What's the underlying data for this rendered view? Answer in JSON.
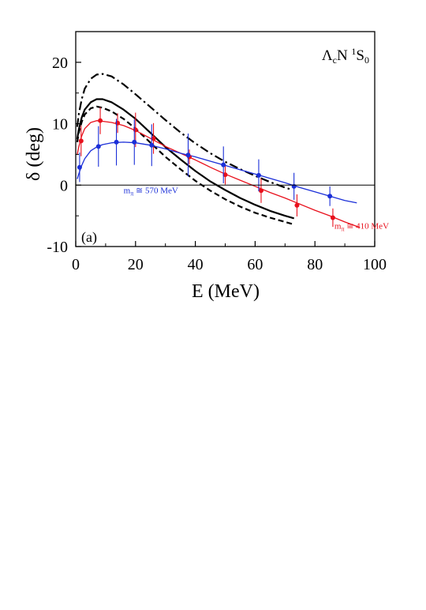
{
  "chart_data": {
    "type": "line",
    "title": "",
    "panel_label": "(a)",
    "channel_label": {
      "base": "Λ",
      "base_sub": "c",
      "mid": "N ",
      "sup": "1",
      "end": "S",
      "end_sub": "0"
    },
    "xlabel": "E (MeV)",
    "ylabel": "δ (deg)",
    "xlim": [
      0,
      100
    ],
    "ylim": [
      -10,
      25
    ],
    "xticks": [
      0,
      20,
      40,
      60,
      80,
      100
    ],
    "yticks": [
      -10,
      0,
      10,
      20
    ],
    "zero_line": true,
    "grid": false,
    "series": [
      {
        "style": "dash-dot",
        "color": "#000000",
        "x": [
          0.5,
          1,
          2,
          3,
          5,
          7,
          9,
          12,
          16,
          20,
          25,
          30,
          35,
          40,
          45,
          50,
          55,
          60,
          65,
          70,
          72
        ],
        "y": [
          9.5,
          11.5,
          14.0,
          15.7,
          17.3,
          18.0,
          18.1,
          17.7,
          16.4,
          14.8,
          12.7,
          10.6,
          8.6,
          6.8,
          5.2,
          3.8,
          2.6,
          1.5,
          0.5,
          -0.4,
          -0.7
        ]
      },
      {
        "style": "solid",
        "color": "#000000",
        "x": [
          0.5,
          1,
          2,
          3,
          5,
          7,
          9,
          12,
          16,
          20,
          25,
          30,
          35,
          40,
          45,
          50,
          55,
          60,
          65,
          70,
          73
        ],
        "y": [
          7.5,
          9.0,
          11.0,
          12.3,
          13.5,
          14.0,
          14.0,
          13.5,
          12.3,
          10.8,
          8.5,
          6.2,
          4.2,
          2.3,
          0.6,
          -0.8,
          -2.1,
          -3.2,
          -4.2,
          -5.0,
          -5.4
        ]
      },
      {
        "style": "dashed",
        "color": "#000000",
        "x": [
          0.5,
          1,
          2,
          3,
          5,
          7,
          9,
          12,
          16,
          20,
          25,
          30,
          35,
          40,
          45,
          50,
          55,
          60,
          65,
          70,
          73
        ],
        "y": [
          7.0,
          8.5,
          10.3,
          11.5,
          12.5,
          12.8,
          12.6,
          12.0,
          10.8,
          9.2,
          6.9,
          4.6,
          2.6,
          0.7,
          -0.9,
          -2.3,
          -3.5,
          -4.5,
          -5.3,
          -6.0,
          -6.4
        ]
      },
      {
        "style": "solid",
        "color": "#e8101c",
        "name": "m_π ≅ 410 MeV",
        "x": [
          0.5,
          1,
          2,
          3,
          5,
          7,
          9,
          12,
          16,
          20,
          25,
          30,
          35,
          40,
          45,
          50,
          55,
          60,
          65,
          70,
          75,
          80,
          85,
          90,
          95
        ],
        "y": [
          5.0,
          6.2,
          8.0,
          9.2,
          10.2,
          10.5,
          10.4,
          10.2,
          9.7,
          8.9,
          7.6,
          6.3,
          5.2,
          4.1,
          2.9,
          1.8,
          0.8,
          -0.2,
          -1.2,
          -2.1,
          -3.1,
          -4.1,
          -5.0,
          -6.0,
          -6.9
        ]
      },
      {
        "style": "solid",
        "color": "#1b2fd8",
        "name": "m_π ≅ 570 MeV",
        "x": [
          0.5,
          1,
          2,
          3,
          5,
          7,
          9,
          12,
          16,
          20,
          25,
          30,
          35,
          40,
          45,
          50,
          55,
          60,
          65,
          70,
          75,
          80,
          85,
          90,
          94
        ],
        "y": [
          1.0,
          1.8,
          3.2,
          4.3,
          5.6,
          6.2,
          6.6,
          6.9,
          7.0,
          6.9,
          6.5,
          5.9,
          5.2,
          4.6,
          3.9,
          3.2,
          2.5,
          1.8,
          1.1,
          0.4,
          -0.4,
          -1.1,
          -1.8,
          -2.5,
          -2.9
        ]
      }
    ],
    "red_points": [
      {
        "x": 1.8,
        "y": 7.2,
        "yerr": [
          2.5,
          2.5
        ]
      },
      {
        "x": 8.2,
        "y": 10.5,
        "yerr": [
          2.2,
          2.2
        ]
      },
      {
        "x": 14.0,
        "y": 10.1,
        "yerr": [
          1.6,
          1.6
        ]
      },
      {
        "x": 20.0,
        "y": 9.0,
        "yerr": [
          2.8,
          2.8
        ]
      },
      {
        "x": 26.0,
        "y": 7.6,
        "yerr": [
          2.5,
          2.5
        ]
      },
      {
        "x": 38.0,
        "y": 4.6,
        "yerr": [
          1.2,
          1.2
        ]
      },
      {
        "x": 50.0,
        "y": 1.7,
        "yerr": [
          1.6,
          1.6
        ]
      },
      {
        "x": 62.0,
        "y": -0.9,
        "yerr": [
          2.0,
          2.0
        ]
      },
      {
        "x": 74.0,
        "y": -3.3,
        "yerr": [
          1.8,
          1.8
        ]
      },
      {
        "x": 86.0,
        "y": -5.3,
        "yerr": [
          1.5,
          1.5
        ]
      }
    ],
    "blue_points": [
      {
        "x": 1.3,
        "y": 2.9,
        "yerr": [
          2.4,
          2.4
        ]
      },
      {
        "x": 7.6,
        "y": 6.3,
        "yerr": [
          3.3,
          3.3
        ]
      },
      {
        "x": 13.6,
        "y": 7.0,
        "yerr": [
          3.8,
          3.8
        ]
      },
      {
        "x": 19.6,
        "y": 7.0,
        "yerr": [
          3.7,
          3.7
        ]
      },
      {
        "x": 25.4,
        "y": 6.5,
        "yerr": [
          3.4,
          3.4
        ]
      },
      {
        "x": 37.6,
        "y": 4.9,
        "yerr": [
          3.5,
          3.5
        ]
      },
      {
        "x": 49.4,
        "y": 3.3,
        "yerr": [
          3.0,
          3.0
        ]
      },
      {
        "x": 61.2,
        "y": 1.6,
        "yerr": [
          2.6,
          2.6
        ]
      },
      {
        "x": 73.0,
        "y": -0.2,
        "yerr": [
          2.2,
          2.2
        ]
      },
      {
        "x": 85.0,
        "y": -1.8,
        "yerr": [
          1.6,
          1.6
        ]
      }
    ],
    "annotations": {
      "red_label": {
        "text": "m",
        "sub": "π",
        "rest": " ≅ 410 MeV",
        "color": "#e8101c",
        "at": [
          86.5,
          -7.1
        ]
      },
      "blue_label": {
        "text": "m",
        "sub": "π",
        "rest": " ≅ 570 MeV",
        "color": "#1b2fd8",
        "at": [
          16.0,
          -1.3
        ]
      }
    }
  }
}
